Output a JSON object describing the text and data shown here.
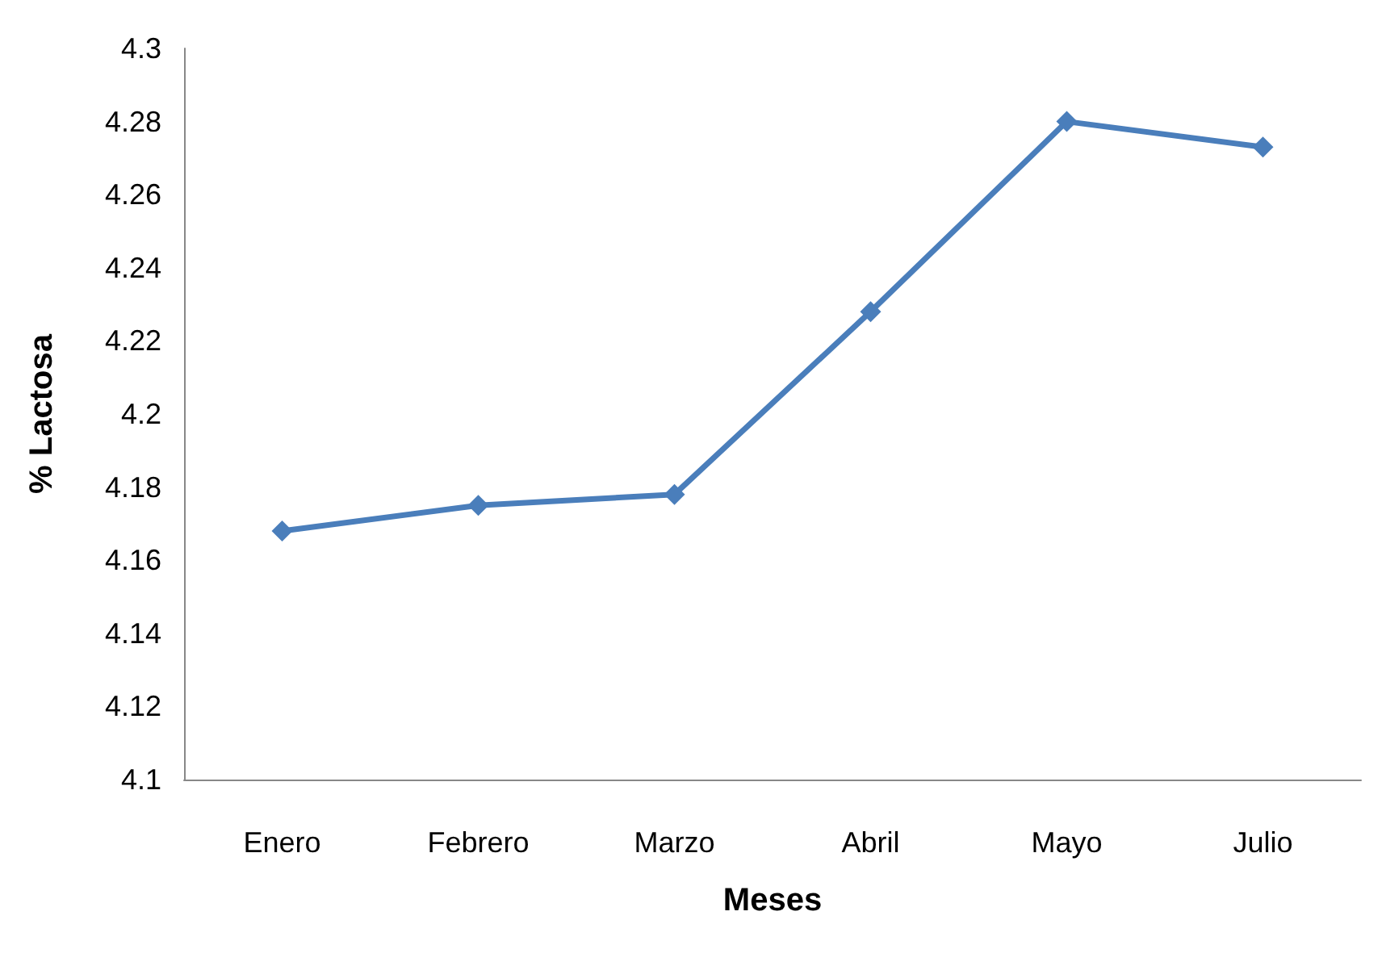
{
  "chart_data": {
    "type": "line",
    "xlabel": "Meses",
    "ylabel": "% Lactosa",
    "categories": [
      "Enero",
      "Febrero",
      "Marzo",
      "Abril",
      "Mayo",
      "Julio"
    ],
    "series": [
      {
        "color": "#4a7ebb",
        "values": [
          4.168,
          4.175,
          4.178,
          4.228,
          4.28,
          4.273
        ]
      }
    ],
    "ylim": [
      4.1,
      4.3
    ],
    "yticks": [
      4.1,
      4.12,
      4.14,
      4.16,
      4.18,
      4.2,
      4.22,
      4.24,
      4.26,
      4.28,
      4.3
    ],
    "grid": false,
    "marker": "diamond",
    "line_style": "solid"
  }
}
